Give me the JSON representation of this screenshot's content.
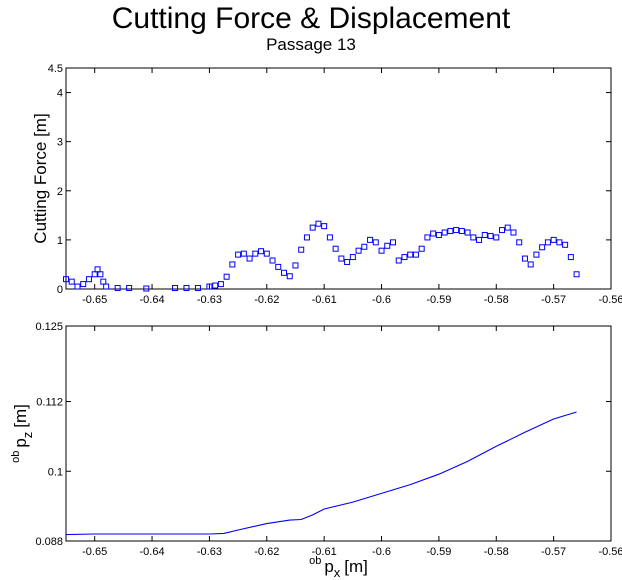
{
  "figure": {
    "title": "Cutting Force & Displacement",
    "subtitle": "Passage 13"
  },
  "chart_data": [
    {
      "type": "scatter",
      "marker": "square",
      "color": "#0000ff",
      "ylabel": "Cutting Force [m]",
      "xlabel": "",
      "xlim": [
        -0.655,
        -0.56
      ],
      "ylim": [
        0,
        4.5
      ],
      "xticks": [
        -0.65,
        -0.64,
        -0.63,
        -0.62,
        -0.61,
        -0.6,
        -0.59,
        -0.58,
        -0.57,
        -0.56
      ],
      "xtick_labels": [
        "-0.65",
        "-0.64",
        "-0.63",
        "-0.62",
        "-0.61",
        "-0.6",
        "-0.59",
        "-0.58",
        "-0.57",
        "-0.56"
      ],
      "yticks": [
        0,
        1,
        2,
        3,
        4,
        4.5
      ],
      "ytick_labels": [
        "0",
        "1",
        "2",
        "3",
        "4",
        "4.5"
      ],
      "points": [
        [
          -0.655,
          0.2
        ],
        [
          -0.654,
          0.15
        ],
        [
          -0.653,
          0.05
        ],
        [
          -0.652,
          0.1
        ],
        [
          -0.651,
          0.2
        ],
        [
          -0.65,
          0.3
        ],
        [
          -0.6495,
          0.4
        ],
        [
          -0.649,
          0.3
        ],
        [
          -0.6485,
          0.15
        ],
        [
          -0.648,
          0.05
        ],
        [
          -0.646,
          0.02
        ],
        [
          -0.644,
          0.02
        ],
        [
          -0.641,
          0.01
        ],
        [
          -0.636,
          0.02
        ],
        [
          -0.634,
          0.02
        ],
        [
          -0.632,
          0.02
        ],
        [
          -0.63,
          0.05
        ],
        [
          -0.629,
          0.07
        ],
        [
          -0.628,
          0.1
        ],
        [
          -0.627,
          0.25
        ],
        [
          -0.626,
          0.5
        ],
        [
          -0.625,
          0.7
        ],
        [
          -0.624,
          0.72
        ],
        [
          -0.623,
          0.62
        ],
        [
          -0.622,
          0.72
        ],
        [
          -0.621,
          0.77
        ],
        [
          -0.62,
          0.72
        ],
        [
          -0.619,
          0.58
        ],
        [
          -0.618,
          0.45
        ],
        [
          -0.617,
          0.33
        ],
        [
          -0.616,
          0.26
        ],
        [
          -0.615,
          0.48
        ],
        [
          -0.614,
          0.8
        ],
        [
          -0.613,
          1.05
        ],
        [
          -0.612,
          1.25
        ],
        [
          -0.611,
          1.33
        ],
        [
          -0.61,
          1.28
        ],
        [
          -0.609,
          1.05
        ],
        [
          -0.608,
          0.82
        ],
        [
          -0.607,
          0.62
        ],
        [
          -0.606,
          0.55
        ],
        [
          -0.605,
          0.65
        ],
        [
          -0.604,
          0.78
        ],
        [
          -0.603,
          0.86
        ],
        [
          -0.602,
          1.0
        ],
        [
          -0.601,
          0.95
        ],
        [
          -0.6,
          0.78
        ],
        [
          -0.599,
          0.88
        ],
        [
          -0.598,
          0.95
        ],
        [
          -0.597,
          0.58
        ],
        [
          -0.596,
          0.65
        ],
        [
          -0.595,
          0.7
        ],
        [
          -0.594,
          0.7
        ],
        [
          -0.593,
          0.82
        ],
        [
          -0.592,
          1.05
        ],
        [
          -0.591,
          1.13
        ],
        [
          -0.59,
          1.1
        ],
        [
          -0.589,
          1.15
        ],
        [
          -0.588,
          1.18
        ],
        [
          -0.587,
          1.2
        ],
        [
          -0.586,
          1.18
        ],
        [
          -0.585,
          1.15
        ],
        [
          -0.584,
          1.05
        ],
        [
          -0.583,
          1.0
        ],
        [
          -0.582,
          1.1
        ],
        [
          -0.581,
          1.08
        ],
        [
          -0.58,
          1.05
        ],
        [
          -0.579,
          1.2
        ],
        [
          -0.578,
          1.25
        ],
        [
          -0.577,
          1.15
        ],
        [
          -0.576,
          0.95
        ],
        [
          -0.575,
          0.62
        ],
        [
          -0.574,
          0.5
        ],
        [
          -0.573,
          0.7
        ],
        [
          -0.572,
          0.85
        ],
        [
          -0.571,
          0.95
        ],
        [
          -0.57,
          1.0
        ],
        [
          -0.569,
          0.95
        ],
        [
          -0.568,
          0.9
        ],
        [
          -0.567,
          0.65
        ],
        [
          -0.566,
          0.3
        ]
      ]
    },
    {
      "type": "line",
      "color": "#0000ff",
      "ylabel": "ob p z [m]",
      "xlabel": "ob p x [m]",
      "xlim": [
        -0.655,
        -0.56
      ],
      "ylim": [
        0.088,
        0.125
      ],
      "xticks": [
        -0.65,
        -0.64,
        -0.63,
        -0.62,
        -0.61,
        -0.6,
        -0.59,
        -0.58,
        -0.57,
        -0.56
      ],
      "xtick_labels": [
        "-0.65",
        "-0.64",
        "-0.63",
        "-0.62",
        "-0.61",
        "-0.6",
        "-0.59",
        "-0.58",
        "-0.57",
        "-0.56"
      ],
      "yticks": [
        0.088,
        0.1,
        0.112,
        0.125
      ],
      "ytick_labels": [
        "0.088",
        "0.1",
        "0.112",
        "0.125"
      ],
      "points": [
        [
          -0.655,
          0.0891
        ],
        [
          -0.65,
          0.0892
        ],
        [
          -0.64,
          0.0892
        ],
        [
          -0.63,
          0.0892
        ],
        [
          -0.6275,
          0.0893
        ],
        [
          -0.625,
          0.0899
        ],
        [
          -0.62,
          0.091
        ],
        [
          -0.616,
          0.0916
        ],
        [
          -0.614,
          0.0917
        ],
        [
          -0.612,
          0.0925
        ],
        [
          -0.61,
          0.0935
        ],
        [
          -0.605,
          0.0947
        ],
        [
          -0.6,
          0.0962
        ],
        [
          -0.595,
          0.0977
        ],
        [
          -0.59,
          0.0995
        ],
        [
          -0.585,
          0.1017
        ],
        [
          -0.58,
          0.1043
        ],
        [
          -0.575,
          0.1067
        ],
        [
          -0.57,
          0.109
        ],
        [
          -0.566,
          0.1102
        ]
      ]
    }
  ]
}
